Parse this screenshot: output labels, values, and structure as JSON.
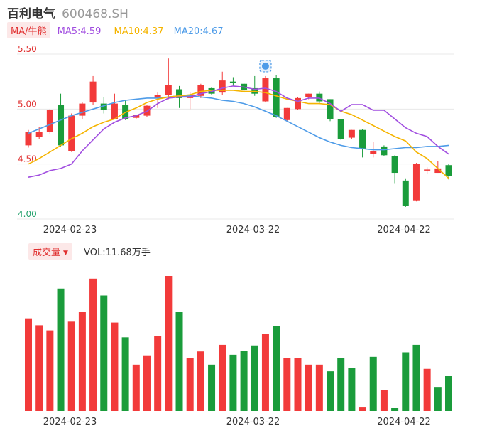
{
  "header": {
    "name": "百利电气",
    "code": "600468.SH"
  },
  "ma_row": {
    "toggle_label": "MA/牛熊",
    "ma5": "MA5:4.59",
    "ma10": "MA10:4.37",
    "ma20": "MA20:4.67"
  },
  "vol_row": {
    "toggle_label": "成交量",
    "value": "VOL:11.68万手"
  },
  "colors": {
    "up": "#f23a3a",
    "down": "#1a9c3b",
    "ma5": "#a14ee0",
    "ma10": "#f5b400",
    "ma20": "#4d9be8",
    "grid": "#e8e8e8",
    "ytick_red": "#e03030",
    "ytick_green": "#22a06b"
  },
  "icons": {
    "marker": "app-marker-icon",
    "dropdown": "caret-down-icon"
  },
  "chart_data": [
    {
      "type": "candlestick",
      "ylim": [
        4.0,
        5.5
      ],
      "yticks": [
        "5.50",
        "5.00",
        "4.50",
        "4.00"
      ],
      "xticks": [
        "2024-02-23",
        "2024-03-22",
        "2024-04-22"
      ],
      "candles": [
        {
          "o": 4.67,
          "c": 4.79,
          "h": 4.81,
          "l": 4.65
        },
        {
          "o": 4.75,
          "c": 4.79,
          "h": 4.84,
          "l": 4.73
        },
        {
          "o": 4.79,
          "c": 4.99,
          "h": 5.0,
          "l": 4.77
        },
        {
          "o": 5.04,
          "c": 4.67,
          "h": 5.14,
          "l": 4.66
        },
        {
          "o": 4.62,
          "c": 4.94,
          "h": 4.96,
          "l": 4.61
        },
        {
          "o": 4.94,
          "c": 5.05,
          "h": 5.06,
          "l": 4.91
        },
        {
          "o": 5.06,
          "c": 5.25,
          "h": 5.3,
          "l": 5.04
        },
        {
          "o": 5.05,
          "c": 4.99,
          "h": 5.11,
          "l": 4.96
        },
        {
          "o": 4.91,
          "c": 5.05,
          "h": 5.14,
          "l": 4.91
        },
        {
          "o": 5.04,
          "c": 4.91,
          "h": 5.08,
          "l": 4.9
        },
        {
          "o": 4.92,
          "c": 4.95,
          "h": 4.95,
          "l": 4.91
        },
        {
          "o": 4.94,
          "c": 5.03,
          "h": 5.04,
          "l": 4.93
        },
        {
          "o": 5.1,
          "c": 5.13,
          "h": 5.15,
          "l": 5.01
        },
        {
          "o": 5.13,
          "c": 5.22,
          "h": 5.46,
          "l": 5.09
        },
        {
          "o": 5.18,
          "c": 5.1,
          "h": 5.21,
          "l": 5.01
        },
        {
          "o": 5.1,
          "c": 5.13,
          "h": 5.15,
          "l": 5.0
        },
        {
          "o": 5.12,
          "c": 5.22,
          "h": 5.23,
          "l": 5.1
        },
        {
          "o": 5.19,
          "c": 5.14,
          "h": 5.2,
          "l": 5.13
        },
        {
          "o": 5.15,
          "c": 5.26,
          "h": 5.34,
          "l": 5.13
        },
        {
          "o": 5.25,
          "c": 5.24,
          "h": 5.29,
          "l": 5.21
        },
        {
          "o": 5.23,
          "c": 5.17,
          "h": 5.24,
          "l": 5.15
        },
        {
          "o": 5.19,
          "c": 5.14,
          "h": 5.3,
          "l": 5.12
        },
        {
          "o": 5.07,
          "c": 5.28,
          "h": 5.3,
          "l": 5.06
        },
        {
          "o": 5.28,
          "c": 4.93,
          "h": 5.31,
          "l": 4.92
        },
        {
          "o": 4.9,
          "c": 5.01,
          "h": 5.01,
          "l": 4.89
        },
        {
          "o": 5.0,
          "c": 5.1,
          "h": 5.11,
          "l": 4.99
        },
        {
          "o": 5.11,
          "c": 5.14,
          "h": 5.14,
          "l": 5.09
        },
        {
          "o": 5.14,
          "c": 5.07,
          "h": 5.16,
          "l": 5.05
        },
        {
          "o": 5.09,
          "c": 4.91,
          "h": 5.09,
          "l": 4.89
        },
        {
          "o": 4.91,
          "c": 4.73,
          "h": 4.91,
          "l": 4.72
        },
        {
          "o": 4.74,
          "c": 4.81,
          "h": 4.81,
          "l": 4.73
        },
        {
          "o": 4.81,
          "c": 4.64,
          "h": 4.82,
          "l": 4.56
        },
        {
          "o": 4.59,
          "c": 4.62,
          "h": 4.7,
          "l": 4.56
        },
        {
          "o": 4.66,
          "c": 4.58,
          "h": 4.67,
          "l": 4.57
        },
        {
          "o": 4.57,
          "c": 4.42,
          "h": 4.58,
          "l": 4.32
        },
        {
          "o": 4.35,
          "c": 4.12,
          "h": 4.37,
          "l": 4.11
        },
        {
          "o": 4.17,
          "c": 4.5,
          "h": 4.51,
          "l": 4.16
        },
        {
          "o": 4.45,
          "c": 4.45,
          "h": 4.47,
          "l": 4.41
        },
        {
          "o": 4.42,
          "c": 4.46,
          "h": 4.53,
          "l": 4.42
        },
        {
          "o": 4.49,
          "c": 4.39,
          "h": 4.5,
          "l": 4.36
        }
      ],
      "ma5": [
        4.38,
        4.4,
        4.44,
        4.46,
        4.5,
        4.62,
        4.72,
        4.82,
        4.88,
        4.92,
        4.94,
        4.98,
        5.05,
        5.1,
        5.11,
        5.11,
        5.14,
        5.16,
        5.19,
        5.21,
        5.2,
        5.18,
        5.19,
        5.16,
        5.1,
        5.07,
        5.1,
        5.1,
        5.05,
        4.98,
        5.04,
        5.04,
        4.99,
        4.99,
        4.91,
        4.83,
        4.78,
        4.75,
        4.66,
        4.59
      ],
      "ma10": [
        4.5,
        4.55,
        4.61,
        4.67,
        4.73,
        4.78,
        4.84,
        4.88,
        4.91,
        4.97,
        5.01,
        5.06,
        5.09,
        5.11,
        5.12,
        5.13,
        5.16,
        5.17,
        5.17,
        5.17,
        5.16,
        5.16,
        5.15,
        5.12,
        5.09,
        5.07,
        5.05,
        5.05,
        5.04,
        4.98,
        4.95,
        4.9,
        4.85,
        4.8,
        4.75,
        4.71,
        4.61,
        4.55,
        4.46,
        4.37
      ],
      "ma20": [
        4.78,
        4.82,
        4.86,
        4.9,
        4.94,
        4.97,
        5.0,
        5.03,
        5.06,
        5.08,
        5.09,
        5.1,
        5.1,
        5.11,
        5.12,
        5.12,
        5.11,
        5.1,
        5.08,
        5.07,
        5.05,
        5.02,
        4.98,
        4.94,
        4.89,
        4.84,
        4.79,
        4.74,
        4.7,
        4.67,
        4.65,
        4.64,
        4.63,
        4.63,
        4.64,
        4.65,
        4.65,
        4.66,
        4.66,
        4.67
      ]
    },
    {
      "type": "bar",
      "series_name": "成交量",
      "unit": "万手",
      "values": [
        30.8,
        28.5,
        26.8,
        40.7,
        29.7,
        33.0,
        44.0,
        38.4,
        29.4,
        24.5,
        15.4,
        18.5,
        24.9,
        44.9,
        33.0,
        17.6,
        19.8,
        15.4,
        22.0,
        18.7,
        20.0,
        21.8,
        25.7,
        28.2,
        17.6,
        17.6,
        15.4,
        15.4,
        13.2,
        17.6,
        14.3,
        1.4,
        18.0,
        7.0,
        1.0,
        19.5,
        22.0,
        14.0,
        8.0,
        11.68
      ],
      "directions": [
        "up",
        "up",
        "up",
        "down",
        "up",
        "up",
        "up",
        "down",
        "up",
        "down",
        "up",
        "up",
        "up",
        "up",
        "down",
        "up",
        "up",
        "down",
        "up",
        "down",
        "down",
        "down",
        "up",
        "down",
        "up",
        "up",
        "up",
        "up",
        "down",
        "down",
        "down",
        "up",
        "down",
        "up",
        "down",
        "down",
        "down",
        "up",
        "down",
        "down"
      ]
    }
  ]
}
